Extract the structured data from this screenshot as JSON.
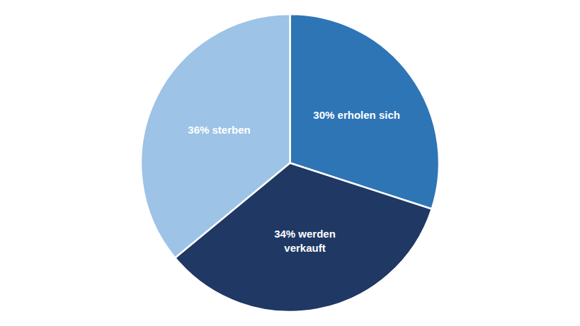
{
  "chart_data": {
    "type": "pie",
    "categories": [
      "30% erholen sich",
      "36% sterben",
      "34% werden\nverkauft"
    ],
    "values": [
      30,
      36,
      34
    ],
    "colors": [
      "#2E75B6",
      "#9DC3E6",
      "#1F3864"
    ]
  }
}
